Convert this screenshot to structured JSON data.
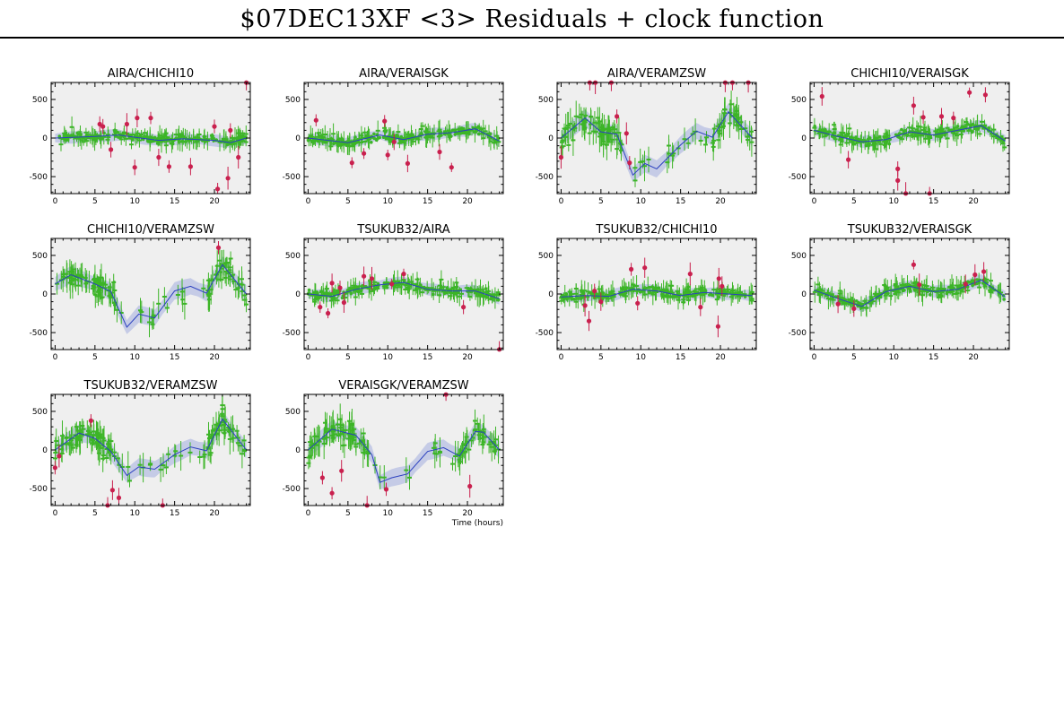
{
  "page": {
    "title": "$07DEC13XF <3> Residuals + clock function"
  },
  "colors": {
    "good": "#3cb527",
    "flagged": "#c9204e",
    "clock": "#2a3fbf",
    "band": "#c5cbe6",
    "panel_bg": "#efefef"
  },
  "chart_data": [
    {
      "type": "scatter",
      "title": "AIRA/CHICHI10",
      "xlim": [
        -0.5,
        24.5
      ],
      "ylim": [
        -720,
        720
      ],
      "xticks": [
        0,
        5,
        10,
        15,
        20
      ],
      "yticks": [
        -500,
        0,
        500
      ],
      "xlabel": "",
      "trend": "flat",
      "clock": [
        [
          0,
          0
        ],
        [
          5,
          20
        ],
        [
          8,
          40
        ],
        [
          10,
          10
        ],
        [
          13,
          -30
        ],
        [
          16,
          -10
        ],
        [
          20,
          -30
        ],
        [
          22,
          -60
        ],
        [
          24,
          0
        ]
      ],
      "outliers": [
        [
          5.6,
          180
        ],
        [
          6,
          150
        ],
        [
          7,
          -150
        ],
        [
          9,
          180
        ],
        [
          10.3,
          260
        ],
        [
          10,
          -380
        ],
        [
          12,
          260
        ],
        [
          13,
          -250
        ],
        [
          14.3,
          -370
        ],
        [
          17,
          -370
        ],
        [
          20,
          150
        ],
        [
          20.4,
          -660
        ],
        [
          21.7,
          -520
        ],
        [
          22,
          100
        ],
        [
          24,
          720
        ],
        [
          23,
          -250
        ]
      ]
    },
    {
      "type": "scatter",
      "title": "AIRA/VERAISGK",
      "xlim": [
        -0.5,
        24.5
      ],
      "ylim": [
        -720,
        720
      ],
      "xticks": [
        0,
        5,
        10,
        15,
        20
      ],
      "yticks": [
        -500,
        0,
        500
      ],
      "xlabel": "",
      "trend": "flat2",
      "clock": [
        [
          0,
          0
        ],
        [
          5,
          -60
        ],
        [
          9,
          40
        ],
        [
          12,
          -20
        ],
        [
          15,
          50
        ],
        [
          18,
          70
        ],
        [
          21,
          120
        ],
        [
          24,
          -40
        ]
      ],
      "outliers": [
        [
          1,
          230
        ],
        [
          5.5,
          -320
        ],
        [
          7,
          -200
        ],
        [
          9.6,
          220
        ],
        [
          10,
          -220
        ],
        [
          10.8,
          -50
        ],
        [
          12.5,
          -330
        ],
        [
          16.5,
          -180
        ],
        [
          18,
          -380
        ]
      ]
    },
    {
      "type": "scatter",
      "title": "AIRA/VERAMZSW",
      "xlim": [
        -0.5,
        24.5
      ],
      "ylim": [
        -720,
        720
      ],
      "xticks": [
        0,
        5,
        10,
        15,
        20
      ],
      "yticks": [
        -500,
        0,
        500
      ],
      "xlabel": "",
      "trend": "vera",
      "clock": [
        [
          0,
          0
        ],
        [
          3,
          260
        ],
        [
          5,
          80
        ],
        [
          7,
          50
        ],
        [
          9,
          -480
        ],
        [
          10.5,
          -330
        ],
        [
          12,
          -400
        ],
        [
          15,
          -90
        ],
        [
          17,
          90
        ],
        [
          19,
          10
        ],
        [
          21,
          340
        ],
        [
          24,
          0
        ]
      ],
      "outliers": [
        [
          0,
          -250
        ],
        [
          3.6,
          720
        ],
        [
          4.3,
          720
        ],
        [
          6.3,
          720
        ],
        [
          7,
          280
        ],
        [
          8.6,
          -320
        ],
        [
          20.6,
          720
        ],
        [
          21.5,
          720
        ],
        [
          23.5,
          720
        ],
        [
          8.2,
          60
        ]
      ]
    },
    {
      "type": "scatter",
      "title": "CHICHI10/VERAISGK",
      "xlim": [
        -0.5,
        24.5
      ],
      "ylim": [
        -720,
        720
      ],
      "xticks": [
        0,
        5,
        10,
        15,
        20
      ],
      "yticks": [
        -500,
        0,
        500
      ],
      "xlabel": "",
      "trend": "flat3",
      "clock": [
        [
          0,
          100
        ],
        [
          3,
          20
        ],
        [
          6,
          -50
        ],
        [
          9,
          -20
        ],
        [
          12,
          80
        ],
        [
          15,
          40
        ],
        [
          18,
          100
        ],
        [
          21,
          160
        ],
        [
          24,
          -40
        ]
      ],
      "outliers": [
        [
          1,
          540
        ],
        [
          4.3,
          -280
        ],
        [
          10.5,
          -400
        ],
        [
          10.5,
          -550
        ],
        [
          11.5,
          -720
        ],
        [
          12.5,
          420
        ],
        [
          13.7,
          270
        ],
        [
          14.5,
          -720
        ],
        [
          16,
          280
        ],
        [
          17.5,
          260
        ],
        [
          19.5,
          590
        ],
        [
          21.5,
          560
        ]
      ]
    },
    {
      "type": "scatter",
      "title": "CHICHI10/VERAMZSW",
      "xlim": [
        -0.5,
        24.5
      ],
      "ylim": [
        -720,
        720
      ],
      "xticks": [
        0,
        5,
        10,
        15,
        20
      ],
      "yticks": [
        -500,
        0,
        500
      ],
      "xlabel": "",
      "trend": "vera",
      "clock": [
        [
          0,
          130
        ],
        [
          2,
          250
        ],
        [
          5,
          130
        ],
        [
          7,
          30
        ],
        [
          9,
          -430
        ],
        [
          10.5,
          -260
        ],
        [
          12.5,
          -310
        ],
        [
          15,
          40
        ],
        [
          17,
          100
        ],
        [
          19,
          10
        ],
        [
          21,
          380
        ],
        [
          24,
          0
        ]
      ],
      "outliers": [
        [
          20.5,
          600
        ]
      ]
    },
    {
      "type": "scatter",
      "title": "TSUKUB32/AIRA",
      "xlim": [
        -0.5,
        24.5
      ],
      "ylim": [
        -720,
        720
      ],
      "xticks": [
        0,
        5,
        10,
        15,
        20
      ],
      "yticks": [
        -500,
        0,
        500
      ],
      "xlabel": "",
      "trend": "tsuaira",
      "clock": [
        [
          0,
          0
        ],
        [
          3,
          -30
        ],
        [
          6,
          60
        ],
        [
          9,
          120
        ],
        [
          12,
          150
        ],
        [
          15,
          60
        ],
        [
          18,
          40
        ],
        [
          21,
          40
        ],
        [
          24,
          -60
        ]
      ],
      "outliers": [
        [
          1.5,
          -170
        ],
        [
          2.5,
          -250
        ],
        [
          3,
          140
        ],
        [
          4,
          80
        ],
        [
          4.5,
          -110
        ],
        [
          7,
          230
        ],
        [
          8,
          200
        ],
        [
          10.5,
          130
        ],
        [
          12,
          260
        ],
        [
          19.5,
          -170
        ],
        [
          24,
          -720
        ]
      ]
    },
    {
      "type": "scatter",
      "title": "TSUKUB32/CHICHI10",
      "xlim": [
        -0.5,
        24.5
      ],
      "ylim": [
        -720,
        720
      ],
      "xticks": [
        0,
        5,
        10,
        15,
        20
      ],
      "yticks": [
        -500,
        0,
        500
      ],
      "xlabel": "",
      "trend": "flat4",
      "clock": [
        [
          0,
          -40
        ],
        [
          3,
          -20
        ],
        [
          6,
          -30
        ],
        [
          9,
          60
        ],
        [
          12,
          40
        ],
        [
          15,
          -20
        ],
        [
          18,
          20
        ],
        [
          21,
          0
        ],
        [
          24,
          -20
        ]
      ],
      "outliers": [
        [
          3,
          -150
        ],
        [
          3.5,
          -350
        ],
        [
          4.2,
          40
        ],
        [
          5,
          -100
        ],
        [
          8.8,
          320
        ],
        [
          10.5,
          340
        ],
        [
          9.6,
          -120
        ],
        [
          16.2,
          260
        ],
        [
          19.8,
          200
        ],
        [
          19.7,
          -420
        ],
        [
          20.2,
          100
        ],
        [
          17.5,
          -170
        ]
      ]
    },
    {
      "type": "scatter",
      "title": "TSUKUB32/VERAISGK",
      "xlim": [
        -0.5,
        24.5
      ],
      "ylim": [
        -720,
        720
      ],
      "xticks": [
        0,
        5,
        10,
        15,
        20
      ],
      "yticks": [
        -500,
        0,
        500
      ],
      "xlabel": "",
      "trend": "tsuvg",
      "clock": [
        [
          0,
          50
        ],
        [
          3,
          -60
        ],
        [
          6,
          -160
        ],
        [
          9,
          30
        ],
        [
          12,
          100
        ],
        [
          15,
          30
        ],
        [
          18,
          60
        ],
        [
          21,
          180
        ],
        [
          24,
          -40
        ]
      ],
      "outliers": [
        [
          3,
          -130
        ],
        [
          5,
          -190
        ],
        [
          12.5,
          380
        ],
        [
          13.2,
          120
        ],
        [
          19,
          130
        ],
        [
          20.2,
          250
        ],
        [
          21.3,
          290
        ]
      ]
    },
    {
      "type": "scatter",
      "title": "TSUKUB32/VERAMZSW",
      "xlim": [
        -0.5,
        24.5
      ],
      "ylim": [
        -720,
        720
      ],
      "xticks": [
        0,
        5,
        10,
        15,
        20
      ],
      "yticks": [
        -500,
        0,
        500
      ],
      "xlabel": "",
      "trend": "vera",
      "clock": [
        [
          0,
          0
        ],
        [
          3,
          220
        ],
        [
          5,
          150
        ],
        [
          7,
          -20
        ],
        [
          9,
          -330
        ],
        [
          10.5,
          -220
        ],
        [
          12.5,
          -250
        ],
        [
          15,
          -60
        ],
        [
          17,
          40
        ],
        [
          19,
          -10
        ],
        [
          21,
          400
        ],
        [
          24,
          0
        ]
      ],
      "outliers": [
        [
          0,
          -230
        ],
        [
          0.5,
          -80
        ],
        [
          4.5,
          380
        ],
        [
          7.2,
          -520
        ],
        [
          6.6,
          -720
        ],
        [
          13.5,
          -720
        ],
        [
          8,
          -620
        ]
      ]
    },
    {
      "type": "scatter",
      "title": "VERAISGK/VERAMZSW",
      "xlim": [
        -0.5,
        24.5
      ],
      "ylim": [
        -720,
        720
      ],
      "xticks": [
        0,
        5,
        10,
        15,
        20
      ],
      "yticks": [
        -500,
        0,
        500
      ],
      "xlabel": "Time (hours)",
      "trend": "vera",
      "clock": [
        [
          0,
          0
        ],
        [
          3,
          270
        ],
        [
          6,
          190
        ],
        [
          8,
          -60
        ],
        [
          9,
          -420
        ],
        [
          10.5,
          -360
        ],
        [
          12.5,
          -310
        ],
        [
          15,
          -20
        ],
        [
          17,
          30
        ],
        [
          19,
          -80
        ],
        [
          21,
          240
        ],
        [
          22,
          230
        ],
        [
          24,
          0
        ]
      ],
      "outliers": [
        [
          1.8,
          -360
        ],
        [
          3,
          -560
        ],
        [
          4.2,
          -270
        ],
        [
          7.4,
          -720
        ],
        [
          9.8,
          -510
        ],
        [
          17.3,
          720
        ],
        [
          20.3,
          -470
        ]
      ]
    }
  ]
}
